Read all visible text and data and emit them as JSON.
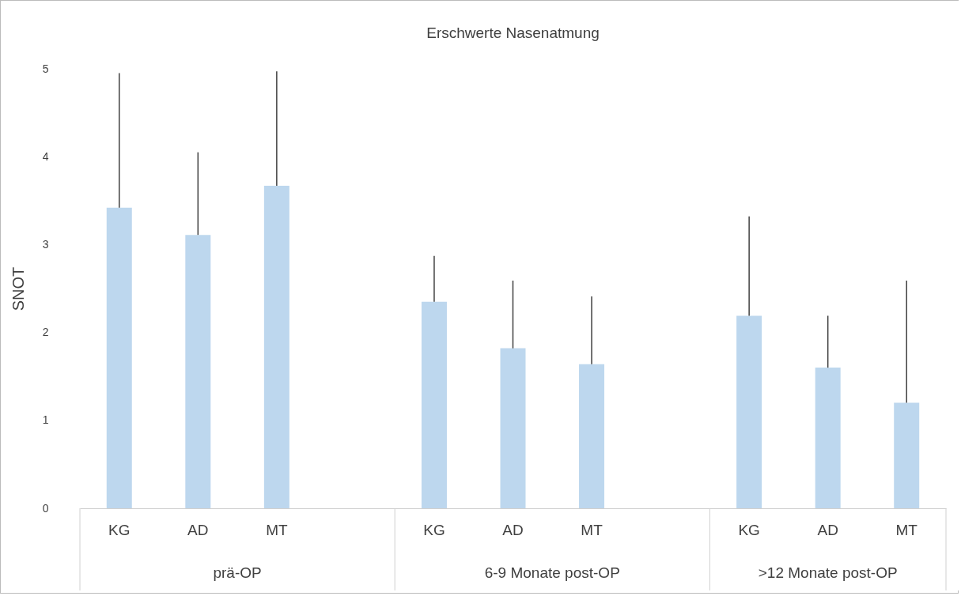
{
  "chart_data": {
    "type": "bar",
    "title": "Erschwerte Nasenatmung",
    "ylabel": "SNOT",
    "categories": [
      "KG",
      "AD",
      "MT",
      null,
      "KG",
      "AD",
      "MT",
      null,
      "KG",
      "AD",
      "MT"
    ],
    "values": [
      3.42,
      3.11,
      3.67,
      null,
      2.35,
      1.82,
      1.64,
      null,
      2.19,
      1.6,
      1.2
    ],
    "errors": [
      [
        3.42,
        4.95
      ],
      [
        3.11,
        4.05
      ],
      [
        3.67,
        4.97
      ],
      null,
      [
        2.35,
        2.87
      ],
      [
        1.82,
        2.59
      ],
      [
        1.64,
        2.41
      ],
      null,
      [
        2.19,
        3.32
      ],
      [
        1.6,
        2.19
      ],
      [
        1.2,
        2.59
      ]
    ],
    "color": "#bdd7ee",
    "ylim": [
      0,
      5
    ],
    "yticks": [
      0,
      1,
      2,
      3,
      4,
      5
    ],
    "annotations": [
      "prä-OP",
      "6-9 Monate post-OP",
      ">12 Monate post-OP"
    ]
  }
}
